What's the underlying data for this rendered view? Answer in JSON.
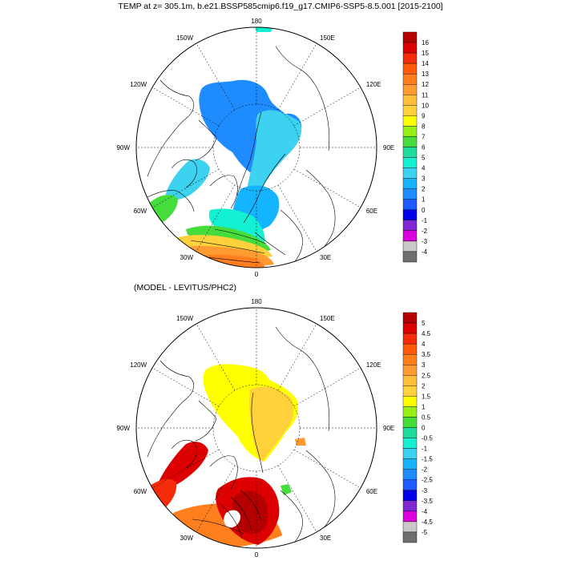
{
  "figure": {
    "title": "TEMP at z= 305.1m, b.e21.BSSP585cmip6.f19_g17.CMIP6-SSP5-8.5.001 [2015-2100]",
    "subtitle": "(MODEL - LEVITUS/PHC2)"
  },
  "panels": [
    {
      "id": "model",
      "lon_labels": [
        {
          "text": "180",
          "lon": 180
        },
        {
          "text": "150E",
          "lon": 150
        },
        {
          "text": "120E",
          "lon": 120
        },
        {
          "text": "90E",
          "lon": 90
        },
        {
          "text": "60E",
          "lon": 60
        },
        {
          "text": "30E",
          "lon": 30
        },
        {
          "text": "0",
          "lon": 0
        },
        {
          "text": "30W",
          "lon": -30
        },
        {
          "text": "60W",
          "lon": -60
        },
        {
          "text": "90W",
          "lon": -90
        },
        {
          "text": "120W",
          "lon": -120
        },
        {
          "text": "150W",
          "lon": -150
        }
      ],
      "colorbar": {
        "labels": [
          "16",
          "15",
          "14",
          "13",
          "12",
          "11",
          "10",
          "9",
          "8",
          "7",
          "6",
          "5",
          "4",
          "3",
          "2",
          "1",
          "0",
          "-1",
          "-2",
          "-3",
          "-4"
        ],
        "colors": [
          "#b40000",
          "#dc0000",
          "#f52b0a",
          "#ff5a0a",
          "#ff7f1e",
          "#ff9b32",
          "#ffbe3c",
          "#ffd23c",
          "#ffff00",
          "#96f014",
          "#46dc3c",
          "#1edca0",
          "#14f0d2",
          "#3cd2f0",
          "#14b4ff",
          "#1e8cff",
          "#1e5aff",
          "#0000e6",
          "#8228d2",
          "#dc00dc",
          "#c8c8c8",
          "#6e6e6e"
        ]
      }
    },
    {
      "id": "difference",
      "lon_labels": [
        {
          "text": "180",
          "lon": 180
        },
        {
          "text": "150E",
          "lon": 150
        },
        {
          "text": "120E",
          "lon": 120
        },
        {
          "text": "90E",
          "lon": 90
        },
        {
          "text": "60E",
          "lon": 60
        },
        {
          "text": "30E",
          "lon": 30
        },
        {
          "text": "0",
          "lon": 0
        },
        {
          "text": "30W",
          "lon": -30
        },
        {
          "text": "60W",
          "lon": -60
        },
        {
          "text": "90W",
          "lon": -90
        },
        {
          "text": "120W",
          "lon": -120
        },
        {
          "text": "150W",
          "lon": -150
        }
      ],
      "colorbar": {
        "labels": [
          "5",
          "4.5",
          "4",
          "3.5",
          "3",
          "2.5",
          "2",
          "1.5",
          "1",
          "0.5",
          "0",
          "-0.5",
          "-1",
          "-1.5",
          "-2",
          "-2.5",
          "-3",
          "-3.5",
          "-4",
          "-4.5",
          "-5"
        ],
        "colors": [
          "#b40000",
          "#dc0000",
          "#f52b0a",
          "#ff5a0a",
          "#ff7f1e",
          "#ff9b32",
          "#ffbe3c",
          "#ffd23c",
          "#ffff00",
          "#96f014",
          "#46dc3c",
          "#1edca0",
          "#14f0d2",
          "#3cd2f0",
          "#14b4ff",
          "#1e8cff",
          "#1e5aff",
          "#0000e6",
          "#8228d2",
          "#dc00dc",
          "#c8c8c8",
          "#6e6e6e"
        ]
      }
    }
  ]
}
